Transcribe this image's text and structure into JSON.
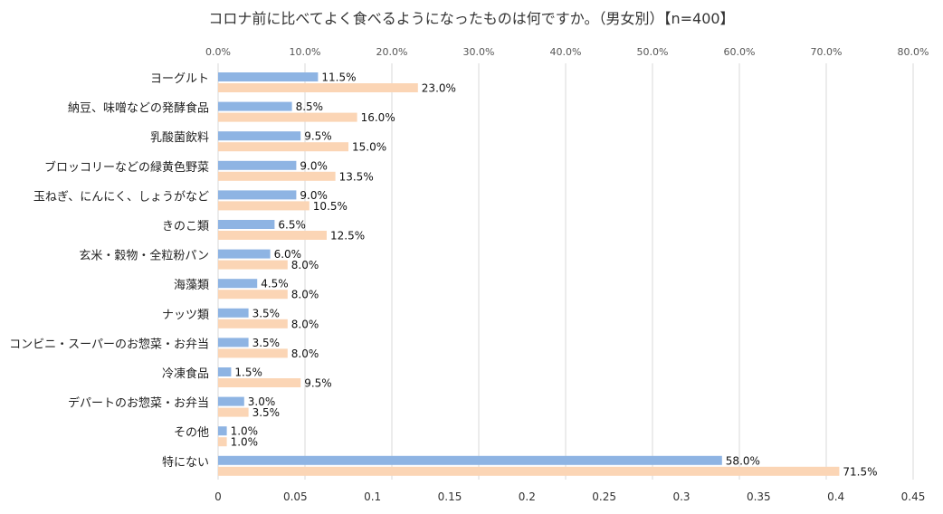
{
  "chart_data": {
    "type": "bar",
    "orientation": "horizontal",
    "title": "コロナ前に比べてよく食べるようになったものは何ですか。（男女別）【n=400】",
    "categories": [
      "ヨーグルト",
      "納豆、味噌などの発酵食品",
      "乳酸菌飲料",
      "ブロッコリーなどの緑黄色野菜",
      "玉ねぎ、にんにく、しょうがなど",
      "きのこ類",
      "玄米・穀物・全粒粉パン",
      "海藻類",
      "ナッツ類",
      "コンビニ・スーパーのお惣菜・お弁当",
      "冷凍食品",
      "デパートのお惣菜・お弁当",
      "その他",
      "特にない"
    ],
    "series": [
      {
        "name": "series-1",
        "color": "#8EB4E3",
        "values": [
          11.5,
          8.5,
          9.5,
          9.0,
          9.0,
          6.5,
          6.0,
          4.5,
          3.5,
          3.5,
          1.5,
          3.0,
          1.0,
          58.0
        ],
        "labels": [
          "11.5%",
          "8.5%",
          "9.5%",
          "9.0%",
          "9.0%",
          "6.5%",
          "6.0%",
          "4.5%",
          "3.5%",
          "3.5%",
          "1.5%",
          "3.0%",
          "1.0%",
          "58.0%"
        ]
      },
      {
        "name": "series-2",
        "color": "#FBD5B5",
        "values": [
          23.0,
          16.0,
          15.0,
          13.5,
          10.5,
          12.5,
          8.0,
          8.0,
          8.0,
          8.0,
          9.5,
          3.5,
          1.0,
          71.5
        ],
        "labels": [
          "23.0%",
          "16.0%",
          "15.0%",
          "13.5%",
          "10.5%",
          "12.5%",
          "8.0%",
          "8.0%",
          "8.0%",
          "8.0%",
          "9.5%",
          "3.5%",
          "1.0%",
          "71.5%"
        ]
      }
    ],
    "top_axis": {
      "range": [
        0,
        80
      ],
      "ticks": [
        "0.0%",
        "10.0%",
        "20.0%",
        "30.0%",
        "40.0%",
        "50.0%",
        "60.0%",
        "70.0%",
        "80.0%"
      ]
    },
    "bottom_axis": {
      "range": [
        0,
        0.45
      ],
      "ticks": [
        "0",
        "0.05",
        "0.1",
        "0.15",
        "0.2",
        "0.25",
        "0.3",
        "0.35",
        "0.4",
        "0.45"
      ]
    },
    "grid": true,
    "gridline_color": "#D9D9D9"
  }
}
